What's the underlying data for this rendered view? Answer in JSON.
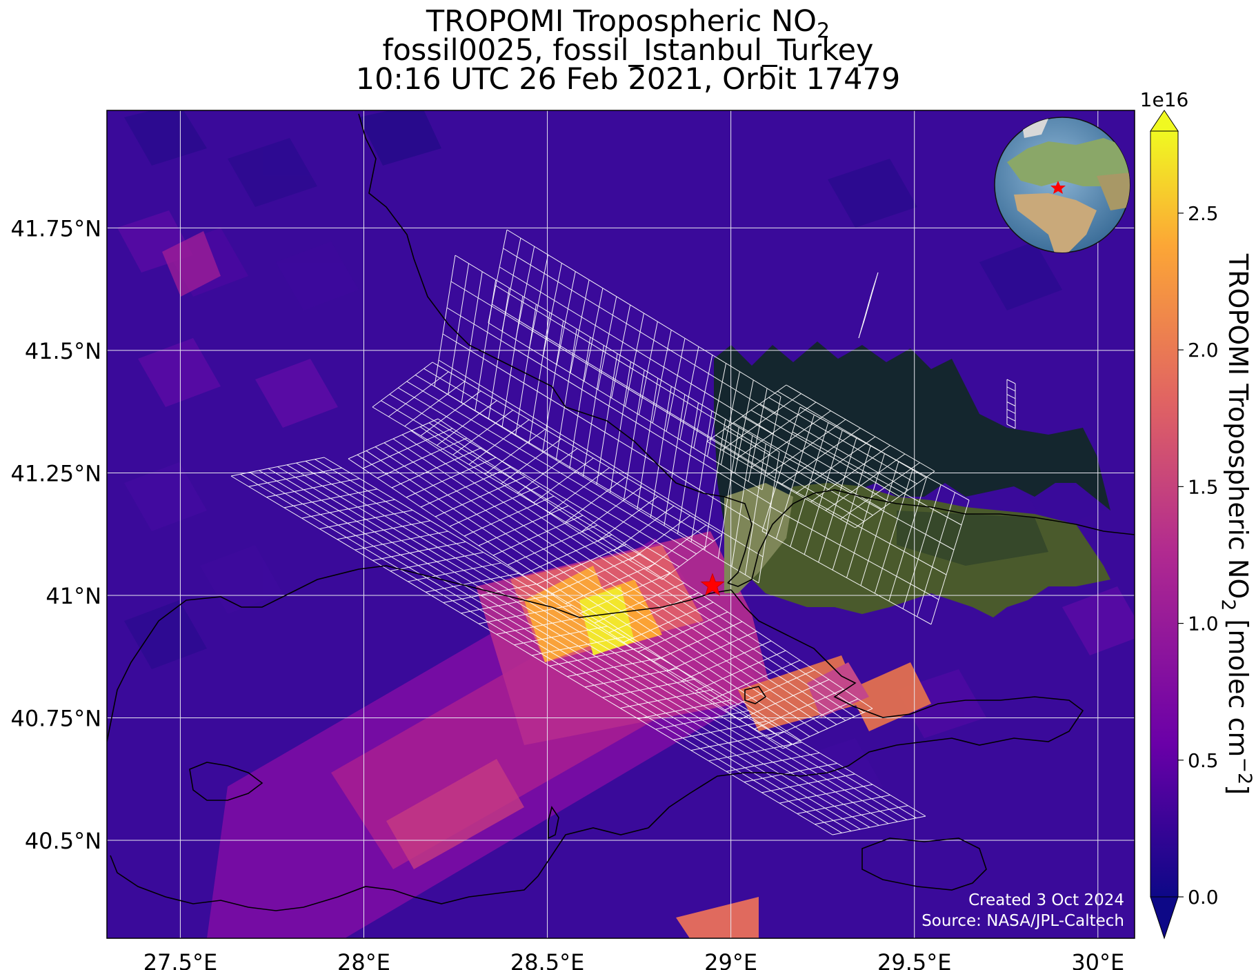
{
  "title": {
    "line1_prefix": "TROPOMI Tropospheric NO",
    "line1_sub": "2",
    "line2": "fossil0025, fossil_Istanbul_Turkey",
    "line3": "10:16 UTC 26 Feb 2021, Orbit 17479"
  },
  "map": {
    "lon_range": [
      27.3,
      30.1
    ],
    "lat_range": [
      40.3,
      41.99
    ],
    "lon_ticks": [
      {
        "value": 27.5,
        "label": "27.5°E"
      },
      {
        "value": 28.0,
        "label": "28°E"
      },
      {
        "value": 28.5,
        "label": "28.5°E"
      },
      {
        "value": 29.0,
        "label": "29°E"
      },
      {
        "value": 29.5,
        "label": "29.5°E"
      },
      {
        "value": 30.0,
        "label": "30°E"
      }
    ],
    "lat_ticks": [
      {
        "value": 40.5,
        "label": "40.5°N"
      },
      {
        "value": 40.75,
        "label": "40.75°N"
      },
      {
        "value": 41.0,
        "label": "41°N"
      },
      {
        "value": 41.25,
        "label": "41.25°N"
      },
      {
        "value": 41.5,
        "label": "41.5°N"
      },
      {
        "value": 41.75,
        "label": "41.75°N"
      }
    ],
    "site_marker": {
      "lon": 28.95,
      "lat": 41.02,
      "symbol": "red-star"
    },
    "background_color": "#3a0a9a",
    "grid_color": "#e8e8f0",
    "footprint_color": "#ffffff",
    "inset_globe": "globe centered on Europe/Africa with red star at Istanbul"
  },
  "colorbar": {
    "label_prefix": "TROPOMI Tropospheric NO",
    "label_sub": "2",
    "label_mid": " [molec cm",
    "label_sup": "−2",
    "label_suffix": "]",
    "multiplier": "1e16",
    "range": [
      0.0,
      2.8
    ],
    "ticks": [
      {
        "value": 0.0,
        "label": "0.0"
      },
      {
        "value": 0.5,
        "label": "0.5"
      },
      {
        "value": 1.0,
        "label": "1.0"
      },
      {
        "value": 1.5,
        "label": "1.5"
      },
      {
        "value": 2.0,
        "label": "2.0"
      },
      {
        "value": 2.5,
        "label": "2.5"
      }
    ],
    "colormap": "plasma",
    "colors": [
      "#0d0887",
      "#6a00a8",
      "#b12a90",
      "#e16462",
      "#fca636",
      "#f0f921"
    ]
  },
  "credit": {
    "created": "Created 3 Oct 2024",
    "source": "Source: NASA/JPL-Caltech"
  }
}
